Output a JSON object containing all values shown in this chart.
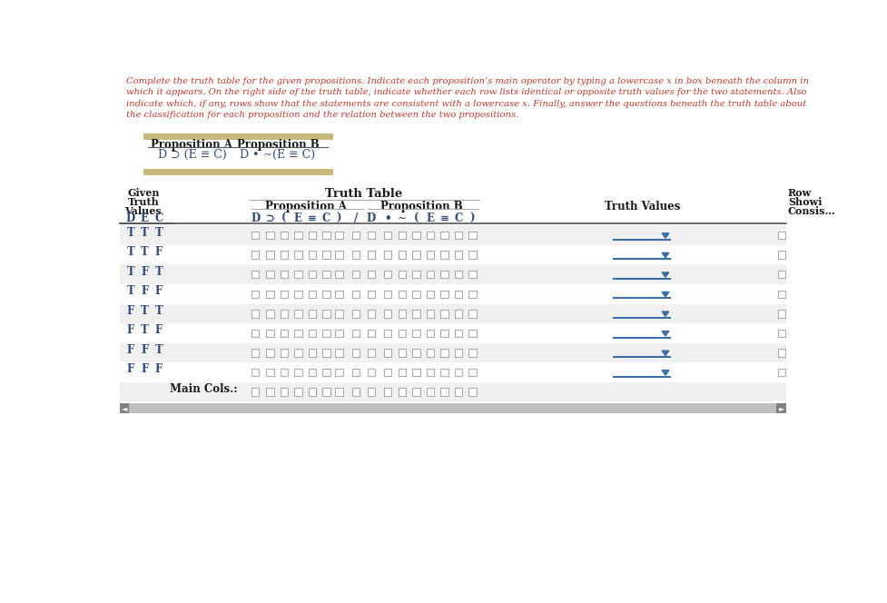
{
  "instr_lines": [
    "Complete the truth table for the given propositions. Indicate each proposition’s main operator by typing a lowercase x in box beneath the column in",
    "which it appears. On the right side of the truth table, indicate whether each row lists identical or opposite truth values for the two statements. Also",
    "indicate which, if any, rows show that the statements are consistent with a lowercase x. Finally, answer the questions beneath the truth table about",
    "the classification for each proposition and the relation between the two propositions."
  ],
  "prop_a_label": "Proposition A",
  "prop_b_label": "Proposition B",
  "prop_a_formula": "D ⊃ (E ≡ C)",
  "prop_b_formula": "D • ~(E ≡ C)",
  "truth_table_header": "Truth Table",
  "prop_a_cols": [
    "D",
    "⊃",
    "(",
    "E",
    "≡",
    "C",
    ")",
    "/"
  ],
  "prop_b_cols": [
    "D",
    "•",
    "~",
    "(",
    "E",
    "≡",
    "C",
    ")"
  ],
  "given_col_names": [
    "D",
    "E",
    "C"
  ],
  "truth_values_header": "Truth Values",
  "row_right_header": [
    "Row",
    "Showi",
    "Consis…"
  ],
  "given_rows": [
    [
      "T",
      "T",
      "T"
    ],
    [
      "T",
      "T",
      "F"
    ],
    [
      "T",
      "F",
      "T"
    ],
    [
      "T",
      "F",
      "F"
    ],
    [
      "F",
      "T",
      "T"
    ],
    [
      "F",
      "T",
      "F"
    ],
    [
      "F",
      "F",
      "T"
    ],
    [
      "F",
      "F",
      "F"
    ]
  ],
  "main_cols_label": "Main Cols.:",
  "bg_light": "#f0f0f0",
  "bg_white": "#ffffff",
  "text_dark": "#1a1a1a",
  "text_blue": "#2e4a7a",
  "instr_color": "#c0392b",
  "tan_color": "#c8b97a",
  "blue_line_color": "#3a6ea5",
  "checkbox_border": "#aaaaaa",
  "scrollbar_bg": "#c0c0c0",
  "scrollbar_thumb": "#808080"
}
